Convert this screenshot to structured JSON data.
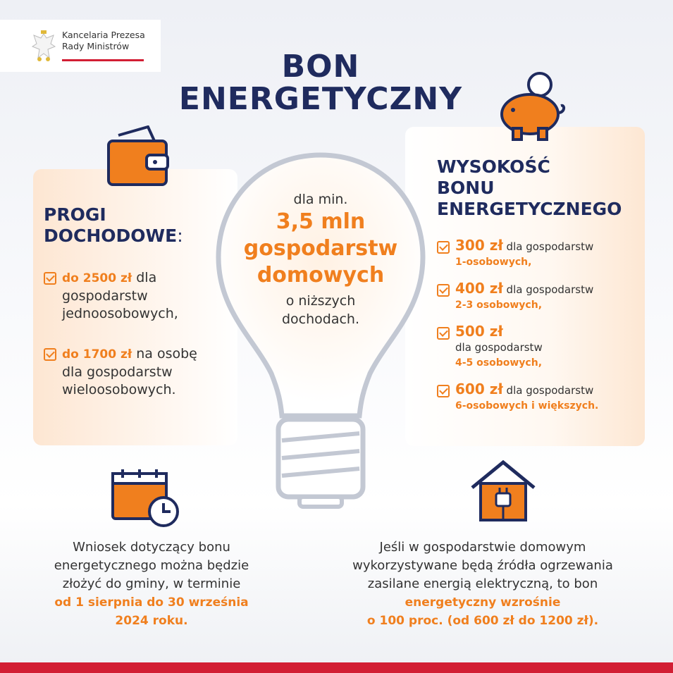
{
  "logo": {
    "line1": "Kancelaria Prezesa",
    "line2": "Rady Ministrów"
  },
  "title": {
    "line1": "BON",
    "line2": "ENERGETYCZNY"
  },
  "left_panel": {
    "heading_line1": "PROGI",
    "heading_line2": "DOCHODOWE",
    "heading_colon": ":",
    "items": [
      {
        "amount": "do 2500 zł",
        "text": " dla gospodarstw jednoosobowych,"
      },
      {
        "amount": "do 1700 zł",
        "text": " na osobę dla gospodarstw wieloosobowych."
      }
    ]
  },
  "center": {
    "line1": "dla min.",
    "line2": "3,5 mln",
    "line3": "gospodarstw",
    "line4": "domowych",
    "line5": "o niższych",
    "line6": "dochodach."
  },
  "right_panel": {
    "heading_line1": "WYSOKOŚĆ",
    "heading_line2": "BONU",
    "heading_line3": "ENERGETYCZNEGO",
    "items": [
      {
        "amount": "300 zł",
        "text": " dla gospodarstw",
        "sub": "1-osobowych,"
      },
      {
        "amount": "400 zł",
        "text": " dla gospodarstw",
        "sub": "2-3 osobowych,"
      },
      {
        "amount": "500 zł",
        "text": "dla gospodarstw",
        "sub": "4-5 osobowych,"
      },
      {
        "amount": "600 zł",
        "text": " dla gospodarstw",
        "sub": "6-osobowych i większych."
      }
    ]
  },
  "bottom_left": {
    "line1": "Wniosek dotyczący bonu",
    "line2": "energetycznego można będzie",
    "line3": "złożyć do gminy, w terminie",
    "line4": "od 1 sierpnia do 30 września",
    "line5": "2024 roku."
  },
  "bottom_right": {
    "line1": "Jeśli w gospodarstwie domowym",
    "line2": "wykorzystywane będą źródła ogrzewania",
    "line3": "zasilane energią elektryczną, to bon",
    "line4": "energetyczny wzrośnie",
    "line5": "o 100 proc. (od 600 zł do 1200 zł)."
  },
  "colors": {
    "navy": "#1f2b5e",
    "orange": "#f07f1e",
    "red": "#d21e34"
  },
  "icons": [
    "eagle-emblem",
    "wallet-icon",
    "piggy-bank-icon",
    "lightbulb-icon",
    "calendar-clock-icon",
    "house-plug-icon",
    "checkbox-icon"
  ]
}
